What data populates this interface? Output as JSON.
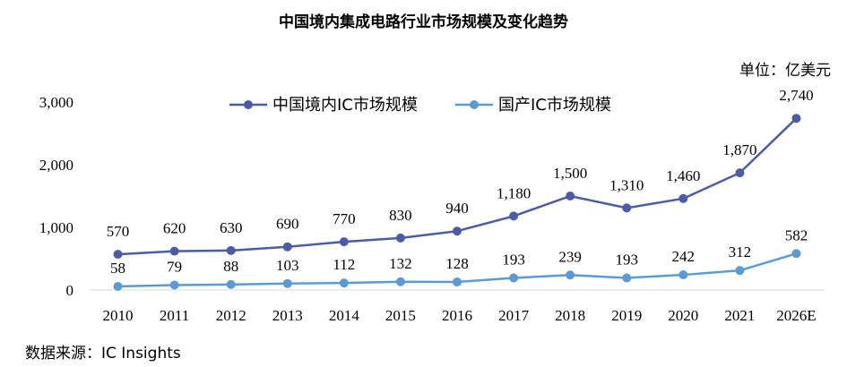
{
  "title": "中国境内集成电路行业市场规模及变化趋势",
  "unit": "单位：亿美元",
  "source": "数据来源：IC Insights",
  "colors": {
    "series0": "#4a5ca6",
    "series1": "#5b9bd5"
  },
  "chart_data": {
    "type": "line",
    "categories": [
      "2010",
      "2011",
      "2012",
      "2013",
      "2014",
      "2015",
      "2016",
      "2017",
      "2018",
      "2019",
      "2020",
      "2021",
      "2026E"
    ],
    "series": [
      {
        "name": "中国境内IC市场规模",
        "values": [
          570,
          620,
          630,
          690,
          770,
          830,
          940,
          1180,
          1500,
          1310,
          1460,
          1870,
          2740
        ],
        "labels": [
          "570",
          "620",
          "630",
          "690",
          "770",
          "830",
          "940",
          "1,180",
          "1,500",
          "1,310",
          "1,460",
          "1,870",
          "2,740"
        ]
      },
      {
        "name": "国产IC市场规模",
        "values": [
          58,
          79,
          88,
          103,
          112,
          132,
          128,
          193,
          239,
          193,
          242,
          312,
          582
        ],
        "labels": [
          "58",
          "79",
          "88",
          "103",
          "112",
          "132",
          "128",
          "193",
          "239",
          "193",
          "242",
          "312",
          "582"
        ]
      }
    ],
    "yticks": [
      "0",
      "1,000",
      "2,000",
      "3,000"
    ],
    "ylim": [
      0,
      3000
    ],
    "legend": "top-center",
    "grid": false
  }
}
